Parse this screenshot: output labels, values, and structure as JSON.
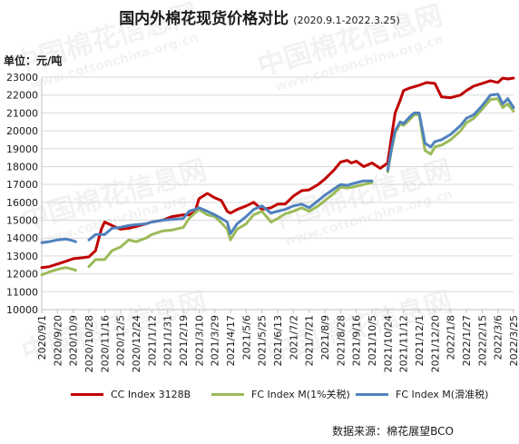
{
  "watermark": {
    "brand": "中国棉花信息网",
    "url": "www.cottonchina.org.cn"
  },
  "unit_label": "单位：元/吨",
  "source_text": "数据来源：棉花展望BCO",
  "chart_data": {
    "type": "line",
    "title": "国内外棉花现货价格对比",
    "subtitle": "(2020.9.1-2022.3.25)",
    "xlabel": "",
    "ylabel": "单位：元/吨",
    "ylim": [
      10000,
      23000
    ],
    "yticks": [
      10000,
      11000,
      12000,
      13000,
      14000,
      15000,
      16000,
      17000,
      18000,
      19000,
      20000,
      21000,
      22000,
      23000
    ],
    "xlim": [
      "2020/9/1",
      "2022/3/25"
    ],
    "x_tick_labels": [
      "2020/9/1",
      "2020/9/20",
      "2020/10/9",
      "2020/10/28",
      "2020/11/16",
      "2020/12/5",
      "2020/12/24",
      "2021/1/12",
      "2021/1/31",
      "2021/2/19",
      "2021/3/10",
      "2021/3/29",
      "2021/4/17",
      "2021/5/6",
      "2021/5/25",
      "2021/6/13",
      "2021/7/2",
      "2021/7/21",
      "2021/8/9",
      "2021/8/28",
      "2021/9/16",
      "2021/10/5",
      "2021/10/24",
      "2021/11/12",
      "2021/12/1",
      "2021/12/20",
      "2022/1/8",
      "2022/1/27",
      "2022/2/15",
      "2022/3/6",
      "2022/3/25"
    ],
    "grid": true,
    "legend_position": "bottom",
    "series": [
      {
        "name": "CC Index 3128B",
        "color": "#c00000",
        "x": [
          "2020/9/1",
          "2020/9/10",
          "2020/9/20",
          "2020/9/30",
          "2020/10/9",
          "2020/10/20",
          "2020/10/28",
          "2020/11/5",
          "2020/11/12",
          "2020/11/16",
          "2020/11/25",
          "2020/12/5",
          "2020/12/15",
          "2020/12/24",
          "2021/1/5",
          "2021/1/12",
          "2021/1/25",
          "2021/2/5",
          "2021/2/19",
          "2021/2/26",
          "2021/3/5",
          "2021/3/10",
          "2021/3/20",
          "2021/3/29",
          "2021/4/6",
          "2021/4/13",
          "2021/4/17",
          "2021/4/25",
          "2021/5/6",
          "2021/5/15",
          "2021/5/25",
          "2021/6/5",
          "2021/6/13",
          "2021/6/22",
          "2021/7/2",
          "2021/7/12",
          "2021/7/21",
          "2021/8/1",
          "2021/8/9",
          "2021/8/20",
          "2021/8/28",
          "2021/9/5",
          "2021/9/10",
          "2021/9/16",
          "2021/9/25",
          "2021/10/5",
          "2021/10/15",
          "2021/10/24",
          "2021/10/28",
          "2021/11/2",
          "2021/11/8",
          "2021/11/12",
          "2021/11/20",
          "2021/12/1",
          "2021/12/10",
          "2021/12/20",
          "2021/12/28",
          "2022/1/8",
          "2022/1/20",
          "2022/1/27",
          "2022/2/5",
          "2022/2/15",
          "2022/2/25",
          "2022/3/6",
          "2022/3/12",
          "2022/3/18",
          "2022/3/25"
        ],
        "y": [
          12350,
          12400,
          12550,
          12700,
          12850,
          12900,
          12950,
          13300,
          14500,
          14900,
          14700,
          14500,
          14550,
          14650,
          14800,
          14900,
          15000,
          15200,
          15300,
          15300,
          15450,
          16200,
          16500,
          16250,
          16100,
          15500,
          15400,
          15600,
          15800,
          16000,
          15600,
          15700,
          15900,
          15900,
          16350,
          16650,
          16700,
          17000,
          17300,
          17800,
          18250,
          18350,
          18200,
          18300,
          18000,
          18200,
          17900,
          18200,
          19500,
          21000,
          21700,
          22250,
          22400,
          22550,
          22700,
          22650,
          21900,
          21850,
          22000,
          22250,
          22500,
          22650,
          22800,
          22700,
          22950,
          22900,
          22950
        ]
      },
      {
        "name": "FC Index M(1%关税)",
        "color": "#9bbb59",
        "x": [
          "2020/9/1",
          "2020/9/10",
          "2020/9/20",
          "2020/9/30",
          "2020/10/9",
          "2020/10/12",
          null,
          "2020/10/28",
          "2020/11/5",
          "2020/11/16",
          "2020/11/25",
          "2020/12/5",
          "2020/12/15",
          "2020/12/24",
          "2021/1/5",
          "2021/1/12",
          "2021/1/25",
          "2021/2/5",
          "2021/2/19",
          "2021/2/26",
          "2021/3/5",
          "2021/3/10",
          "2021/3/20",
          "2021/3/29",
          "2021/4/6",
          "2021/4/13",
          "2021/4/17",
          "2021/4/25",
          "2021/5/6",
          "2021/5/15",
          "2021/5/25",
          "2021/6/5",
          "2021/6/13",
          "2021/6/22",
          "2021/7/2",
          "2021/7/12",
          "2021/7/21",
          "2021/8/1",
          "2021/8/9",
          "2021/8/20",
          "2021/8/28",
          "2021/9/5",
          "2021/9/16",
          "2021/9/25",
          "2021/10/5",
          null,
          "2021/10/24",
          "2021/10/28",
          "2021/11/2",
          "2021/11/8",
          "2021/11/12",
          "2021/11/20",
          "2021/11/25",
          "2021/12/1",
          "2021/12/8",
          "2021/12/15",
          "2021/12/20",
          "2021/12/28",
          "2022/1/8",
          "2022/1/20",
          "2022/1/27",
          "2022/2/5",
          "2022/2/15",
          "2022/2/25",
          "2022/3/6",
          "2022/3/12",
          "2022/3/18",
          "2022/3/25"
        ],
        "y": [
          11950,
          12100,
          12250,
          12350,
          12250,
          12200,
          null,
          12400,
          12800,
          12800,
          13300,
          13500,
          13900,
          13800,
          14000,
          14200,
          14400,
          14450,
          14600,
          15100,
          15400,
          15600,
          15300,
          15200,
          14850,
          14500,
          13900,
          14500,
          14800,
          15300,
          15500,
          14900,
          15100,
          15350,
          15500,
          15700,
          15500,
          15800,
          16100,
          16500,
          16850,
          16800,
          16900,
          17000,
          17100,
          null,
          17700,
          18800,
          19900,
          20400,
          20300,
          20650,
          20900,
          20900,
          18900,
          18700,
          19100,
          19200,
          19500,
          20000,
          20450,
          20700,
          21200,
          21750,
          21800,
          21300,
          21500,
          21100
        ]
      },
      {
        "name": "FC Index M(滑准税)",
        "color": "#4f81bd",
        "x": [
          "2020/9/1",
          "2020/9/10",
          "2020/9/20",
          "2020/9/30",
          "2020/10/9",
          "2020/10/12",
          null,
          "2020/10/28",
          "2020/11/5",
          "2020/11/16",
          "2020/11/25",
          "2020/12/5",
          "2020/12/15",
          "2020/12/24",
          "2021/1/5",
          "2021/1/12",
          "2021/1/25",
          "2021/2/5",
          "2021/2/19",
          "2021/2/26",
          "2021/3/5",
          "2021/3/10",
          "2021/3/20",
          "2021/3/29",
          "2021/4/6",
          "2021/4/13",
          "2021/4/17",
          "2021/4/25",
          "2021/5/6",
          "2021/5/15",
          "2021/5/25",
          "2021/6/5",
          "2021/6/13",
          "2021/6/22",
          "2021/7/2",
          "2021/7/12",
          "2021/7/21",
          "2021/8/1",
          "2021/8/9",
          "2021/8/20",
          "2021/8/28",
          "2021/9/5",
          "2021/9/16",
          "2021/9/25",
          "2021/10/5",
          null,
          "2021/10/24",
          "2021/10/28",
          "2021/11/2",
          "2021/11/8",
          "2021/11/12",
          "2021/11/20",
          "2021/11/25",
          "2021/12/1",
          "2021/12/8",
          "2021/12/15",
          "2021/12/20",
          "2021/12/28",
          "2022/1/8",
          "2022/1/20",
          "2022/1/27",
          "2022/2/5",
          "2022/2/15",
          "2022/2/25",
          "2022/3/6",
          "2022/3/12",
          "2022/3/18",
          "2022/3/25"
        ],
        "y": [
          13750,
          13800,
          13900,
          13950,
          13850,
          13800,
          null,
          13900,
          14200,
          14200,
          14550,
          14600,
          14700,
          14750,
          14800,
          14900,
          15000,
          15050,
          15100,
          15500,
          15600,
          15700,
          15500,
          15300,
          15100,
          14900,
          14250,
          14800,
          15200,
          15600,
          15800,
          15400,
          15500,
          15600,
          15800,
          15900,
          15700,
          16100,
          16400,
          16750,
          17000,
          16950,
          17100,
          17200,
          17200,
          null,
          17800,
          18900,
          20000,
          20500,
          20400,
          20800,
          21000,
          21000,
          19300,
          19100,
          19400,
          19500,
          19800,
          20300,
          20700,
          20900,
          21400,
          22000,
          22050,
          21500,
          21800,
          21300
        ]
      }
    ]
  }
}
